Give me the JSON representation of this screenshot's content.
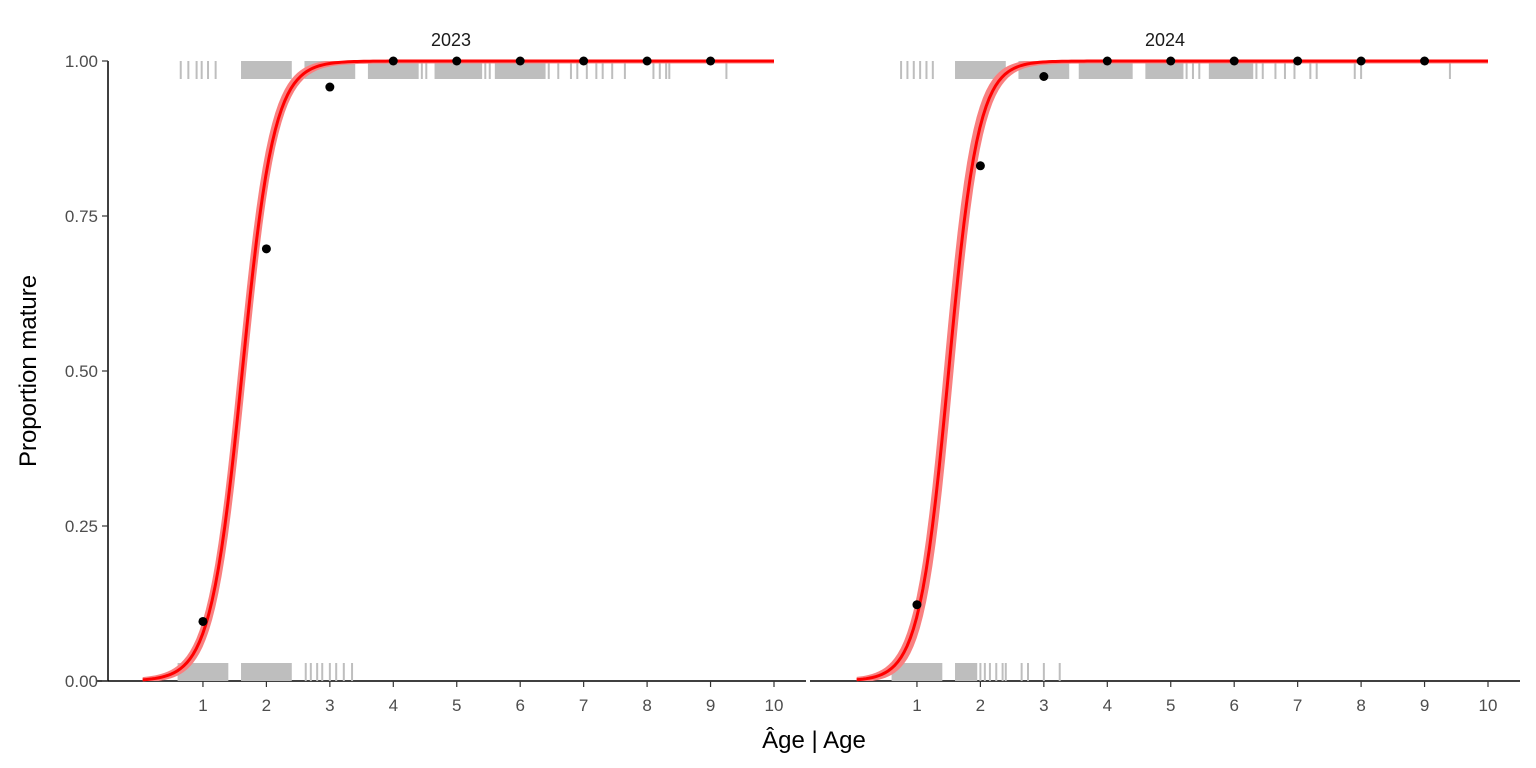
{
  "chart_data": {
    "type": "line",
    "xlabel": "Âge | Age",
    "ylabel": "Proportion mature",
    "xlim": [
      0,
      10.5
    ],
    "ylim": [
      0,
      1
    ],
    "x_ticks": [
      1,
      2,
      3,
      4,
      5,
      6,
      7,
      8,
      9,
      10
    ],
    "y_ticks": [
      0,
      0.25,
      0.5,
      0.75,
      1
    ],
    "y_tick_labels": [
      "0.00",
      "0.25",
      "0.50",
      "0.75",
      "1.00"
    ],
    "grid": false,
    "colors": {
      "fit": "#ff0000",
      "band": "#f98080",
      "points": "#000000",
      "rug": "#bebebe"
    },
    "panels": [
      {
        "title": "2023",
        "fit": {
          "a50": 1.62,
          "slope": 4.0,
          "x_start": 0.05,
          "x_end": 10,
          "band_halfwidth": 0.06
        },
        "points": [
          {
            "x": 1,
            "y": 0.096
          },
          {
            "x": 2,
            "y": 0.697
          },
          {
            "x": 3,
            "y": 0.958
          },
          {
            "x": 4,
            "y": 1.0
          },
          {
            "x": 5,
            "y": 1.0
          },
          {
            "x": 6,
            "y": 1.0
          },
          {
            "x": 7,
            "y": 1.0
          },
          {
            "x": 8,
            "y": 1.0
          },
          {
            "x": 9,
            "y": 1.0
          }
        ],
        "rug_top": {
          "ranges": [
            [
              1.6,
              2.4
            ],
            [
              2.6,
              3.4
            ],
            [
              3.6,
              4.4
            ],
            [
              4.65,
              5.4
            ],
            [
              5.6,
              6.4
            ]
          ],
          "ticks": [
            0.65,
            0.77,
            0.9,
            0.98,
            1.08,
            1.2,
            4.45,
            4.52,
            5.45,
            5.52,
            6.1,
            6.2,
            6.3,
            6.45,
            6.6,
            6.8,
            6.9,
            7.05,
            7.2,
            7.3,
            7.45,
            7.65,
            8.1,
            8.2,
            8.3,
            8.35,
            9.25
          ]
        },
        "rug_bottom": {
          "ranges": [
            [
              0.6,
              1.4
            ],
            [
              1.6,
              2.4
            ]
          ],
          "ticks": [
            2.62,
            2.7,
            2.8,
            2.88,
            3.0,
            3.1,
            3.22,
            3.35
          ]
        }
      },
      {
        "title": "2024",
        "fit": {
          "a50": 1.5,
          "slope": 4.3,
          "x_start": 0.05,
          "x_end": 10,
          "band_halfwidth": 0.08
        },
        "points": [
          {
            "x": 1,
            "y": 0.123
          },
          {
            "x": 2,
            "y": 0.831
          },
          {
            "x": 3,
            "y": 0.975
          },
          {
            "x": 4,
            "y": 1.0
          },
          {
            "x": 5,
            "y": 1.0
          },
          {
            "x": 6,
            "y": 1.0
          },
          {
            "x": 7,
            "y": 1.0
          },
          {
            "x": 8,
            "y": 1.0
          },
          {
            "x": 9,
            "y": 1.0
          }
        ],
        "rug_top": {
          "ranges": [
            [
              1.6,
              2.4
            ],
            [
              2.6,
              3.4
            ],
            [
              3.55,
              4.4
            ],
            [
              4.6,
              5.2
            ],
            [
              5.6,
              6.3
            ]
          ],
          "ticks": [
            0.75,
            0.85,
            0.95,
            1.05,
            1.15,
            1.25,
            5.25,
            5.35,
            5.45,
            6.35,
            6.45,
            6.65,
            6.8,
            6.95,
            7.2,
            7.3,
            7.9,
            8.0,
            9.4
          ]
        },
        "rug_bottom": {
          "ranges": [
            [
              0.6,
              1.4
            ],
            [
              1.6,
              1.95
            ]
          ],
          "ticks": [
            2.0,
            2.07,
            2.15,
            2.25,
            2.35,
            2.4,
            2.65,
            2.75,
            3.0,
            3.25
          ]
        }
      }
    ]
  }
}
